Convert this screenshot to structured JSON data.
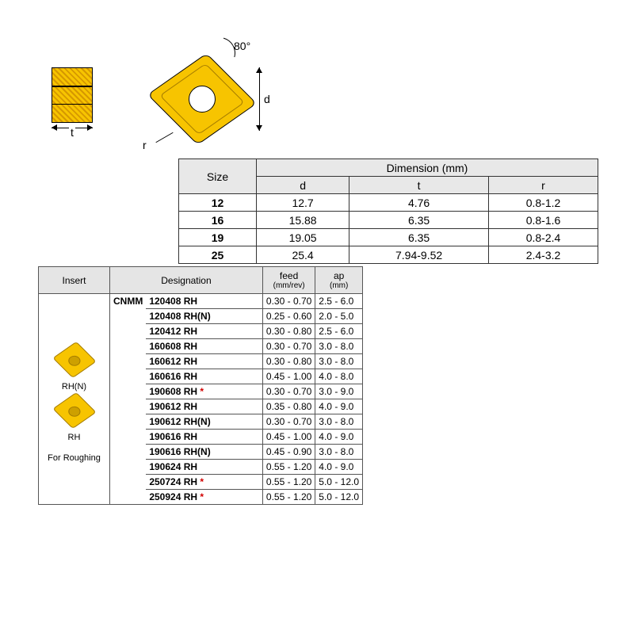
{
  "diagram": {
    "angle": "80°",
    "d_label": "d",
    "t_label": "t",
    "r_label": "r",
    "insert_color": "#f7c400",
    "insert_border": "#000000"
  },
  "size_table": {
    "header_size": "Size",
    "header_dim": "Dimension (mm)",
    "cols": [
      "d",
      "t",
      "r"
    ],
    "rows": [
      {
        "size": "12",
        "d": "12.7",
        "t": "4.76",
        "r": "0.8-1.2"
      },
      {
        "size": "16",
        "d": "15.88",
        "t": "6.35",
        "r": "0.8-1.6"
      },
      {
        "size": "19",
        "d": "19.05",
        "t": "6.35",
        "r": "0.8-2.4"
      },
      {
        "size": "25",
        "d": "25.4",
        "t": "7.94-9.52",
        "r": "2.4-3.2"
      }
    ],
    "header_bg": "#e8e8e8",
    "border_color": "#333333"
  },
  "insert_table": {
    "headers": {
      "insert": "Insert",
      "designation": "Designation",
      "feed": "feed",
      "feed_unit": "(mm/rev)",
      "ap": "ap",
      "ap_unit": "(mm)"
    },
    "insert_panel": {
      "label_top": "RH(N)",
      "label_mid": "RH",
      "label_bottom": "For Roughing"
    },
    "group": "CNMM",
    "rows": [
      {
        "code": "120408 RH",
        "star": false,
        "feed": "0.30 - 0.70",
        "ap": "2.5 - 6.0"
      },
      {
        "code": "120408 RH(N)",
        "star": false,
        "feed": "0.25 - 0.60",
        "ap": "2.0 - 5.0"
      },
      {
        "code": "120412 RH",
        "star": false,
        "feed": "0.30 - 0.80",
        "ap": "2.5 - 6.0"
      },
      {
        "code": "160608 RH",
        "star": false,
        "feed": "0.30 - 0.70",
        "ap": "3.0 - 8.0"
      },
      {
        "code": "160612 RH",
        "star": false,
        "feed": "0.30 - 0.80",
        "ap": "3.0 - 8.0"
      },
      {
        "code": "160616 RH",
        "star": false,
        "feed": "0.45 - 1.00",
        "ap": "4.0 - 8.0"
      },
      {
        "code": "190608 RH",
        "star": true,
        "feed": "0.30 - 0.70",
        "ap": "3.0 - 9.0"
      },
      {
        "code": "190612 RH",
        "star": false,
        "feed": "0.35 - 0.80",
        "ap": "4.0 - 9.0"
      },
      {
        "code": "190612 RH(N)",
        "star": false,
        "feed": "0.30 - 0.70",
        "ap": "3.0 - 8.0"
      },
      {
        "code": "190616 RH",
        "star": false,
        "feed": "0.45 - 1.00",
        "ap": "4.0 - 9.0"
      },
      {
        "code": "190616 RH(N)",
        "star": false,
        "feed": "0.45 - 0.90",
        "ap": "3.0 - 8.0"
      },
      {
        "code": "190624 RH",
        "star": false,
        "feed": "0.55 - 1.20",
        "ap": "4.0 - 9.0"
      },
      {
        "code": "250724 RH",
        "star": true,
        "feed": "0.55 - 1.20",
        "ap": "5.0 - 12.0"
      },
      {
        "code": "250924 RH",
        "star": true,
        "feed": "0.55 - 1.20",
        "ap": "5.0 - 12.0"
      }
    ],
    "star_color": "#d10000",
    "header_bg": "#e5e5e5"
  }
}
